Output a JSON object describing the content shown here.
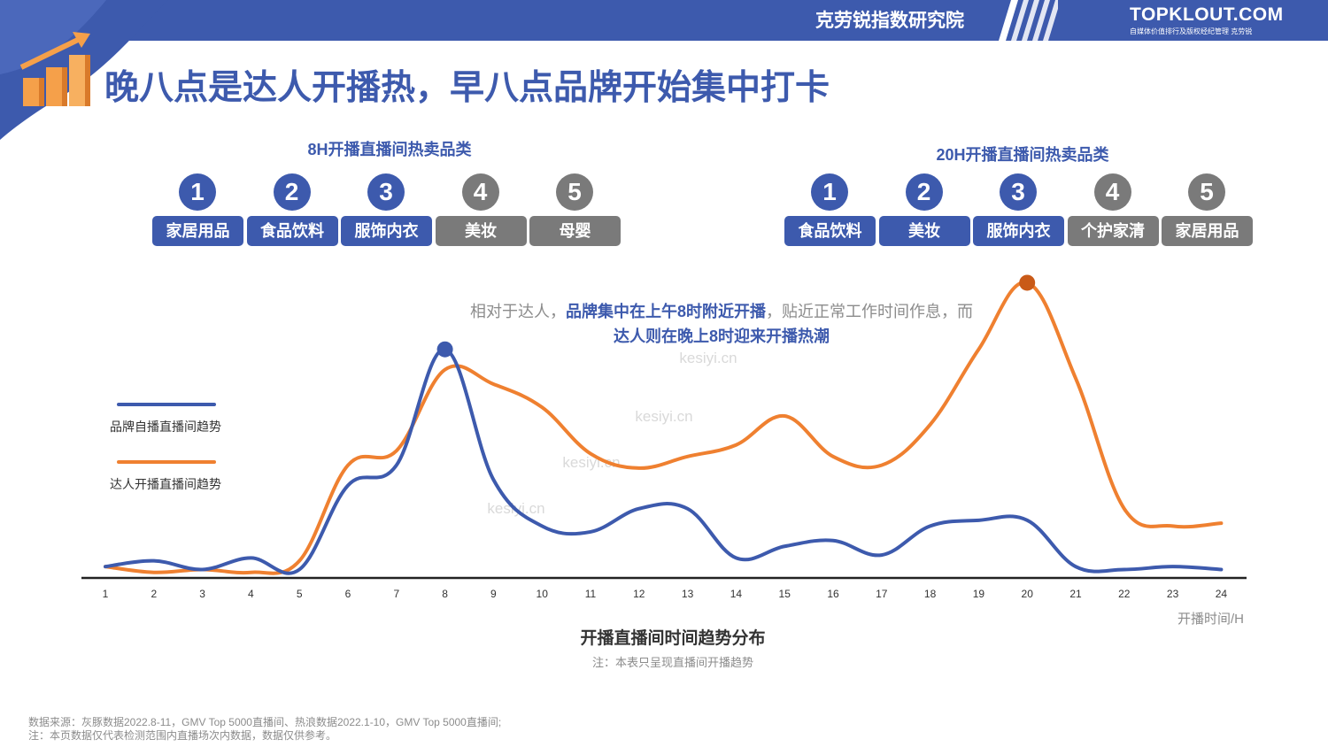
{
  "header": {
    "org_name": "克劳锐指数研究院",
    "brand_name": "TOPKLOUT.COM",
    "brand_tagline": "自媒体价值排行及版权经纪管理 克劳锐"
  },
  "title": "晚八点是达人开播热，早八点品牌开始集中打卡",
  "groups": [
    {
      "title": "8H开播直播间热卖品类",
      "items": [
        {
          "rank": "1",
          "label": "家居用品",
          "color": "#3d5aad"
        },
        {
          "rank": "2",
          "label": "食品饮料",
          "color": "#3d5aad"
        },
        {
          "rank": "3",
          "label": "服饰内衣",
          "color": "#3d5aad"
        },
        {
          "rank": "4",
          "label": "美妆",
          "color": "#7a7a7a"
        },
        {
          "rank": "5",
          "label": "母婴",
          "color": "#7a7a7a"
        }
      ]
    },
    {
      "title": "20H开播直播间热卖品类",
      "items": [
        {
          "rank": "1",
          "label": "食品饮料",
          "color": "#3d5aad"
        },
        {
          "rank": "2",
          "label": "美妆",
          "color": "#3d5aad"
        },
        {
          "rank": "3",
          "label": "服饰内衣",
          "color": "#3d5aad"
        },
        {
          "rank": "4",
          "label": "个护家清",
          "color": "#7a7a7a"
        },
        {
          "rank": "5",
          "label": "家居用品",
          "color": "#7a7a7a"
        }
      ]
    }
  ],
  "annotation": {
    "p1": "相对于达人，",
    "b1": "品牌集中在上午8时附近开播",
    "p2": "，贴近正常工作时间作息，而",
    "b2": "达人则在晚上8时迎来开播热潮"
  },
  "chart_data": {
    "type": "line",
    "title": "开播直播间时间趋势分布",
    "note": "注：本表只呈现直播间开播趋势",
    "xlabel": "开播时间/H",
    "ylabel": "",
    "x": [
      1,
      2,
      3,
      4,
      5,
      6,
      7,
      8,
      9,
      10,
      11,
      12,
      13,
      14,
      15,
      16,
      17,
      18,
      19,
      20,
      21,
      22,
      23,
      24
    ],
    "series": [
      {
        "name": "品牌自播直播间趋势",
        "color": "#3d5aad",
        "values": [
          3,
          5,
          2,
          6,
          2,
          31,
          38,
          78,
          33,
          17,
          15,
          23,
          23,
          6,
          10,
          12,
          7,
          17,
          19,
          19,
          3,
          2,
          3,
          2
        ]
      },
      {
        "name": "达人开播直播间趋势",
        "color": "#ef8030",
        "values": [
          3,
          1,
          2,
          1,
          5,
          38,
          43,
          71,
          66,
          58,
          42,
          37,
          41,
          45,
          55,
          41,
          38,
          52,
          78,
          101,
          68,
          23,
          17,
          18
        ]
      }
    ],
    "highlights": [
      {
        "series": 0,
        "x": 8
      },
      {
        "series": 1,
        "x": 20
      }
    ],
    "ylim": [
      0,
      110
    ],
    "grid": false,
    "legend": "left"
  },
  "watermark": "kesiyi.cn",
  "footer": {
    "source": "数据来源：灰豚数据2022.8-11，GMV Top 5000直播间、热浪数据2022.1-10，GMV Top 5000直播间;",
    "note": "注：本页数据仅代表检测范围内直播场次内数据，数据仅供参考。"
  }
}
